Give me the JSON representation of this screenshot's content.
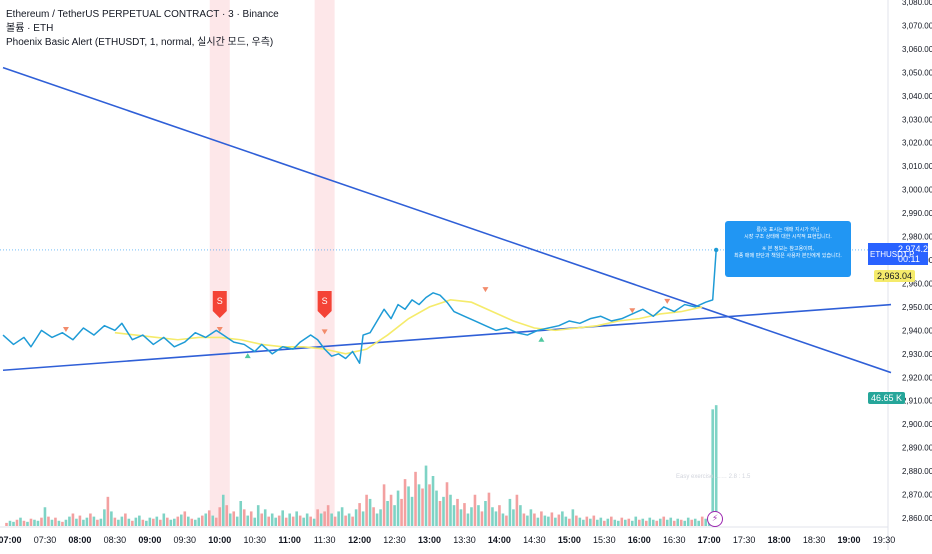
{
  "legend": {
    "line1": "Ethereum / TetherUS PERPETUAL CONTRACT · 3 · Binance",
    "line2": "볼륨 · ETH",
    "line3": "Phoenix Basic Alert (ETHUSDT, 1, normal, 실시간 모드, 우측)"
  },
  "price_tags": {
    "symbol": "ETHUSDT.P",
    "last_price": "2,974.28",
    "countdown": "00:11",
    "yellow_price": "2,963.04",
    "volume": "46.65 K"
  },
  "tooltip": {
    "line1": "롱/숏 표시는 매매 지시가 아닌",
    "line2": "시장 구조 상태에 대한 시각적 표현입니다.",
    "line3": "",
    "line4": "※ 본 정보는 참고용이며,",
    "line5": "최종 매매 판단과 책임은 사용자 본인에게 있습니다."
  },
  "signal_label": "S",
  "hidden_label": "Easy exercise ……  2.8 : 1.5",
  "colors": {
    "price_line": "#1e9bd6",
    "trend_line": "#2f5fd7",
    "short_signal": "#f44336",
    "shade": "#fde7e9",
    "vol_up": "#7ed3c5",
    "vol_down": "#f3a0a0",
    "down_triangle": "#f28b6b",
    "up_triangle": "#4fc99f",
    "last_price_tag": "#2196f3",
    "yellow_tag": "#f5eb6b",
    "volume_tag": "#26a69a"
  },
  "chart_data": {
    "type": "line",
    "title": "Ethereum / TetherUS PERPETUAL CONTRACT · 3 · Binance",
    "xlabel": "",
    "ylabel": "",
    "ylim": [
      2855,
      3084
    ],
    "y_ticks": [
      2860,
      2870,
      2880,
      2890,
      2900,
      2910,
      2920,
      2930,
      2940,
      2950,
      2960,
      2970,
      2980,
      2990,
      3000,
      3010,
      3020,
      3030,
      3040,
      3050,
      3060,
      3070,
      3080
    ],
    "y_tick_labels": [
      "2,860.00",
      "2,870.00",
      "2,880.00",
      "2,890.00",
      "2,900.00",
      "2,910.00",
      "2,920.00",
      "2,930.00",
      "2,940.00",
      "2,950.00",
      "2,960.00",
      "2,970.00",
      "2,980.00",
      "2,990.00",
      "3,000.00",
      "3,010.00",
      "3,020.00",
      "3,030.00",
      "3,040.00",
      "3,050.00",
      "3,060.00",
      "3,070.00",
      "3,080.00"
    ],
    "x_tick_labels": [
      "07:00",
      "07:30",
      "08:00",
      "08:30",
      "09:00",
      "09:30",
      "10:00",
      "10:30",
      "11:00",
      "11:30",
      "12:00",
      "12:30",
      "13:00",
      "13:30",
      "14:00",
      "14:30",
      "15:00",
      "15:30",
      "16:00",
      "16:30",
      "17:00",
      "17:30",
      "18:00",
      "18:30",
      "19:00",
      "19:30"
    ],
    "x_tick_bold": [
      true,
      false,
      true,
      false,
      true,
      false,
      true,
      false,
      true,
      false,
      true,
      false,
      true,
      false,
      true,
      false,
      true,
      false,
      true,
      false,
      true,
      false,
      true,
      false,
      true,
      false
    ],
    "x_start_hours": 7.0,
    "x_end_hours": 19.6,
    "price_series": {
      "name": "ETHUSDT.P",
      "x_hours": [
        6.9,
        7.05,
        7.2,
        7.3,
        7.45,
        7.6,
        7.75,
        7.9,
        8.05,
        8.2,
        8.35,
        8.5,
        8.6,
        8.75,
        8.9,
        9.05,
        9.2,
        9.35,
        9.5,
        9.65,
        9.8,
        9.95,
        10.05,
        10.2,
        10.35,
        10.5,
        10.6,
        10.75,
        10.9,
        11.05,
        11.15,
        11.3,
        11.4,
        11.5,
        11.6,
        11.7,
        11.8,
        11.9,
        12.0,
        12.05,
        12.15,
        12.25,
        12.35,
        12.45,
        12.55,
        12.65,
        12.75,
        12.85,
        12.95,
        13.05,
        13.15,
        13.25,
        13.35,
        13.5,
        13.65,
        13.8,
        13.95,
        14.1,
        14.25,
        14.4,
        14.55,
        14.7,
        14.85,
        15.0,
        15.15,
        15.3,
        15.45,
        15.6,
        15.75,
        15.9,
        16.05,
        16.2,
        16.35,
        16.5,
        16.65,
        16.8,
        16.95,
        17.05,
        17.1
      ],
      "y": [
        2938,
        2934,
        2937,
        2933,
        2940,
        2937,
        2939,
        2936,
        2941,
        2938,
        2942,
        2940,
        2943,
        2936,
        2938,
        2934,
        2937,
        2933,
        2935,
        2939,
        2937,
        2940,
        2938,
        2935,
        2934,
        2931,
        2934,
        2930,
        2933,
        2932,
        2935,
        2938,
        2936,
        2932,
        2929,
        2930,
        2928,
        2931,
        2926,
        2938,
        2939,
        2944,
        2949,
        2945,
        2951,
        2949,
        2953,
        2951,
        2954,
        2956,
        2955,
        2952,
        2948,
        2946,
        2944,
        2942,
        2940,
        2941,
        2939,
        2938,
        2940,
        2941,
        2942,
        2944,
        2943,
        2945,
        2946,
        2944,
        2945,
        2947,
        2949,
        2946,
        2950,
        2948,
        2951,
        2950,
        2952,
        2953,
        2974.28
      ]
    },
    "ma_series": {
      "name": "",
      "x_hours": [
        8.5,
        8.8,
        9.1,
        9.4,
        9.7,
        10.0,
        10.3,
        10.6,
        10.9,
        11.2,
        11.5,
        11.8,
        12.1,
        12.4,
        12.7,
        13.0,
        13.3,
        13.6,
        13.9,
        14.2,
        14.5,
        14.8,
        15.1,
        15.4,
        15.7,
        16.0,
        16.3,
        16.6,
        16.9
      ],
      "y": [
        2939,
        2938,
        2937,
        2936,
        2937,
        2937,
        2936,
        2934,
        2933,
        2933,
        2932,
        2930,
        2932,
        2938,
        2945,
        2950,
        2953,
        2952,
        2948,
        2944,
        2941,
        2940,
        2941,
        2942,
        2944,
        2945,
        2947,
        2948,
        2950
      ]
    },
    "trend_lines": [
      {
        "x_hours": [
          6.9,
          19.6
        ],
        "y": [
          3052,
          2922
        ]
      },
      {
        "x_hours": [
          6.9,
          19.6
        ],
        "y": [
          2923,
          2951
        ]
      }
    ],
    "last_price": 2974.28,
    "short_signals_hours": [
      10.0,
      11.5
    ],
    "down_markers": [
      {
        "x": 7.8,
        "y": 2938
      },
      {
        "x": 10.0,
        "y": 2938
      },
      {
        "x": 11.5,
        "y": 2937
      },
      {
        "x": 13.8,
        "y": 2955
      },
      {
        "x": 15.9,
        "y": 2946
      },
      {
        "x": 16.4,
        "y": 2950
      }
    ],
    "up_markers": [
      {
        "x": 10.4,
        "y": 2932
      },
      {
        "x": 14.6,
        "y": 2939
      }
    ],
    "volume_ylim": [
      0,
      120
    ],
    "volume": [
      [
        6.95,
        3,
        0
      ],
      [
        7.0,
        5,
        1
      ],
      [
        7.05,
        4,
        1
      ],
      [
        7.1,
        6,
        0
      ],
      [
        7.15,
        8,
        1
      ],
      [
        7.2,
        5,
        0
      ],
      [
        7.25,
        4,
        1
      ],
      [
        7.3,
        7,
        0
      ],
      [
        7.35,
        6,
        1
      ],
      [
        7.4,
        5,
        1
      ],
      [
        7.45,
        8,
        0
      ],
      [
        7.5,
        18,
        1
      ],
      [
        7.55,
        9,
        0
      ],
      [
        7.6,
        6,
        1
      ],
      [
        7.65,
        8,
        0
      ],
      [
        7.7,
        5,
        1
      ],
      [
        7.75,
        4,
        0
      ],
      [
        7.8,
        6,
        1
      ],
      [
        7.85,
        9,
        1
      ],
      [
        7.9,
        12,
        0
      ],
      [
        7.95,
        7,
        1
      ],
      [
        8.0,
        10,
        0
      ],
      [
        8.05,
        6,
        1
      ],
      [
        8.1,
        8,
        1
      ],
      [
        8.15,
        12,
        0
      ],
      [
        8.2,
        9,
        1
      ],
      [
        8.25,
        6,
        0
      ],
      [
        8.3,
        7,
        1
      ],
      [
        8.35,
        16,
        1
      ],
      [
        8.4,
        28,
        0
      ],
      [
        8.45,
        14,
        1
      ],
      [
        8.5,
        8,
        0
      ],
      [
        8.55,
        6,
        1
      ],
      [
        8.6,
        9,
        1
      ],
      [
        8.65,
        12,
        0
      ],
      [
        8.7,
        7,
        1
      ],
      [
        8.75,
        5,
        0
      ],
      [
        8.8,
        8,
        1
      ],
      [
        8.85,
        10,
        1
      ],
      [
        8.9,
        6,
        0
      ],
      [
        8.95,
        5,
        1
      ],
      [
        9.0,
        8,
        1
      ],
      [
        9.05,
        7,
        0
      ],
      [
        9.1,
        9,
        1
      ],
      [
        9.15,
        6,
        0
      ],
      [
        9.2,
        12,
        1
      ],
      [
        9.25,
        8,
        0
      ],
      [
        9.3,
        6,
        1
      ],
      [
        9.35,
        7,
        1
      ],
      [
        9.4,
        9,
        0
      ],
      [
        9.45,
        11,
        1
      ],
      [
        9.5,
        14,
        0
      ],
      [
        9.55,
        9,
        1
      ],
      [
        9.6,
        7,
        0
      ],
      [
        9.65,
        6,
        1
      ],
      [
        9.7,
        8,
        1
      ],
      [
        9.75,
        10,
        0
      ],
      [
        9.8,
        12,
        1
      ],
      [
        9.85,
        15,
        0
      ],
      [
        9.9,
        10,
        1
      ],
      [
        9.95,
        8,
        0
      ],
      [
        10.0,
        18,
        0
      ],
      [
        10.05,
        30,
        1
      ],
      [
        10.1,
        20,
        0
      ],
      [
        10.15,
        12,
        1
      ],
      [
        10.2,
        14,
        0
      ],
      [
        10.25,
        9,
        1
      ],
      [
        10.3,
        24,
        1
      ],
      [
        10.35,
        16,
        0
      ],
      [
        10.4,
        10,
        1
      ],
      [
        10.45,
        14,
        0
      ],
      [
        10.5,
        8,
        1
      ],
      [
        10.55,
        20,
        1
      ],
      [
        10.6,
        12,
        0
      ],
      [
        10.65,
        16,
        1
      ],
      [
        10.7,
        9,
        0
      ],
      [
        10.75,
        12,
        1
      ],
      [
        10.8,
        8,
        1
      ],
      [
        10.85,
        10,
        0
      ],
      [
        10.9,
        15,
        1
      ],
      [
        10.95,
        8,
        0
      ],
      [
        11.0,
        12,
        1
      ],
      [
        11.05,
        9,
        0
      ],
      [
        11.1,
        14,
        1
      ],
      [
        11.15,
        10,
        0
      ],
      [
        11.2,
        8,
        1
      ],
      [
        11.25,
        12,
        1
      ],
      [
        11.3,
        9,
        0
      ],
      [
        11.35,
        7,
        1
      ],
      [
        11.4,
        16,
        0
      ],
      [
        11.45,
        12,
        1
      ],
      [
        11.5,
        14,
        0
      ],
      [
        11.55,
        20,
        0
      ],
      [
        11.6,
        12,
        1
      ],
      [
        11.65,
        9,
        0
      ],
      [
        11.7,
        14,
        1
      ],
      [
        11.75,
        18,
        1
      ],
      [
        11.8,
        10,
        0
      ],
      [
        11.85,
        12,
        1
      ],
      [
        11.9,
        9,
        0
      ],
      [
        11.95,
        16,
        1
      ],
      [
        12.0,
        22,
        0
      ],
      [
        12.05,
        14,
        1
      ],
      [
        12.1,
        30,
        0
      ],
      [
        12.15,
        26,
        1
      ],
      [
        12.2,
        18,
        0
      ],
      [
        12.25,
        12,
        1
      ],
      [
        12.3,
        16,
        1
      ],
      [
        12.35,
        40,
        0
      ],
      [
        12.4,
        24,
        1
      ],
      [
        12.45,
        30,
        0
      ],
      [
        12.5,
        20,
        1
      ],
      [
        12.55,
        34,
        1
      ],
      [
        12.6,
        26,
        0
      ],
      [
        12.65,
        45,
        0
      ],
      [
        12.7,
        38,
        1
      ],
      [
        12.75,
        28,
        1
      ],
      [
        12.8,
        52,
        0
      ],
      [
        12.85,
        40,
        1
      ],
      [
        12.9,
        36,
        0
      ],
      [
        12.95,
        58,
        1
      ],
      [
        13.0,
        40,
        0
      ],
      [
        13.05,
        48,
        1
      ],
      [
        13.1,
        34,
        1
      ],
      [
        13.15,
        24,
        0
      ],
      [
        13.2,
        28,
        1
      ],
      [
        13.25,
        42,
        0
      ],
      [
        13.3,
        30,
        1
      ],
      [
        13.35,
        20,
        1
      ],
      [
        13.4,
        26,
        0
      ],
      [
        13.45,
        16,
        1
      ],
      [
        13.5,
        22,
        0
      ],
      [
        13.55,
        12,
        1
      ],
      [
        13.6,
        18,
        1
      ],
      [
        13.65,
        30,
        0
      ],
      [
        13.7,
        20,
        1
      ],
      [
        13.75,
        14,
        0
      ],
      [
        13.8,
        24,
        1
      ],
      [
        13.85,
        32,
        0
      ],
      [
        13.9,
        18,
        1
      ],
      [
        13.95,
        14,
        1
      ],
      [
        14.0,
        20,
        0
      ],
      [
        14.05,
        12,
        1
      ],
      [
        14.1,
        10,
        0
      ],
      [
        14.15,
        26,
        1
      ],
      [
        14.2,
        16,
        1
      ],
      [
        14.25,
        30,
        0
      ],
      [
        14.3,
        20,
        1
      ],
      [
        14.35,
        12,
        0
      ],
      [
        14.4,
        10,
        1
      ],
      [
        14.45,
        16,
        1
      ],
      [
        14.5,
        12,
        0
      ],
      [
        14.55,
        8,
        1
      ],
      [
        14.6,
        14,
        0
      ],
      [
        14.65,
        10,
        1
      ],
      [
        14.7,
        9,
        1
      ],
      [
        14.75,
        13,
        0
      ],
      [
        14.8,
        8,
        1
      ],
      [
        14.85,
        11,
        0
      ],
      [
        14.9,
        14,
        1
      ],
      [
        14.95,
        9,
        1
      ],
      [
        15.0,
        7,
        0
      ],
      [
        15.05,
        16,
        1
      ],
      [
        15.1,
        10,
        0
      ],
      [
        15.15,
        8,
        1
      ],
      [
        15.2,
        6,
        1
      ],
      [
        15.25,
        9,
        0
      ],
      [
        15.3,
        7,
        1
      ],
      [
        15.35,
        10,
        0
      ],
      [
        15.4,
        6,
        1
      ],
      [
        15.45,
        8,
        1
      ],
      [
        15.5,
        5,
        0
      ],
      [
        15.55,
        7,
        1
      ],
      [
        15.6,
        9,
        0
      ],
      [
        15.65,
        6,
        1
      ],
      [
        15.7,
        5,
        1
      ],
      [
        15.75,
        8,
        0
      ],
      [
        15.8,
        6,
        1
      ],
      [
        15.85,
        7,
        0
      ],
      [
        15.9,
        5,
        1
      ],
      [
        15.95,
        9,
        1
      ],
      [
        16.0,
        6,
        0
      ],
      [
        16.05,
        7,
        1
      ],
      [
        16.1,
        5,
        0
      ],
      [
        16.15,
        8,
        1
      ],
      [
        16.2,
        6,
        1
      ],
      [
        16.25,
        5,
        0
      ],
      [
        16.3,
        7,
        1
      ],
      [
        16.35,
        9,
        0
      ],
      [
        16.4,
        6,
        1
      ],
      [
        16.45,
        8,
        1
      ],
      [
        16.5,
        5,
        0
      ],
      [
        16.55,
        7,
        1
      ],
      [
        16.6,
        6,
        0
      ],
      [
        16.65,
        5,
        1
      ],
      [
        16.7,
        8,
        1
      ],
      [
        16.75,
        6,
        0
      ],
      [
        16.8,
        7,
        1
      ],
      [
        16.85,
        5,
        1
      ],
      [
        16.9,
        9,
        0
      ],
      [
        16.95,
        7,
        1
      ],
      [
        17.0,
        6,
        1
      ],
      [
        17.05,
        112,
        1
      ],
      [
        17.1,
        116,
        1
      ]
    ]
  }
}
